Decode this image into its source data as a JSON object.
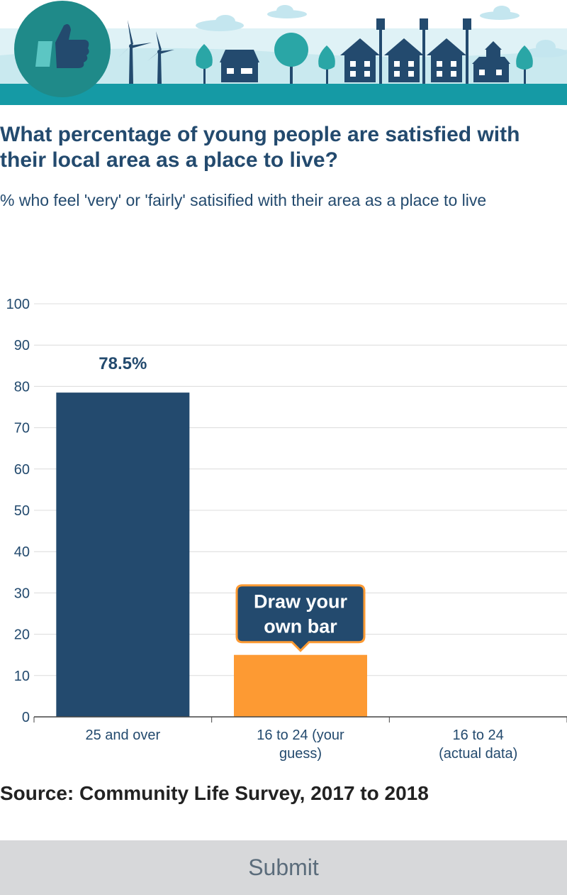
{
  "title": "What percentage of young people are satisfied with their local area as a place to live?",
  "subtitle": "% who feel 'very' or 'fairly' satisified with their area as a place to live",
  "source": "Source: Community Life Survey, 2017 to 2018",
  "submit_label": "Submit",
  "colors": {
    "actual_bar": "#234a6e",
    "guess_bar": "#fd9a33",
    "banner_sky": "#dff2f6",
    "banner_ground": "#159aa5",
    "accent_teal": "#1f8a89"
  },
  "banner_icons": [
    "thumbs-up-icon",
    "wind-turbine-icon",
    "tree-icon",
    "house-icon",
    "street-lamp-icon",
    "cloud-icon"
  ],
  "chart_data": {
    "type": "bar",
    "categories": [
      "25 and over",
      "16 to 24 (your guess)",
      "16 to 24 (actual data)"
    ],
    "category_lines": [
      [
        "25 and over"
      ],
      [
        "16 to 24 (your",
        "guess)"
      ],
      [
        "16 to 24",
        "(actual data)"
      ]
    ],
    "values": [
      78.5,
      15,
      null
    ],
    "data_labels": [
      "78.5%",
      "",
      ""
    ],
    "yticks": [
      0,
      10,
      20,
      30,
      40,
      50,
      60,
      70,
      80,
      90,
      100
    ],
    "ylim": [
      0,
      100
    ],
    "grid": true,
    "xlabel": "",
    "ylabel": "",
    "callout": [
      "Draw your",
      "own bar"
    ]
  }
}
